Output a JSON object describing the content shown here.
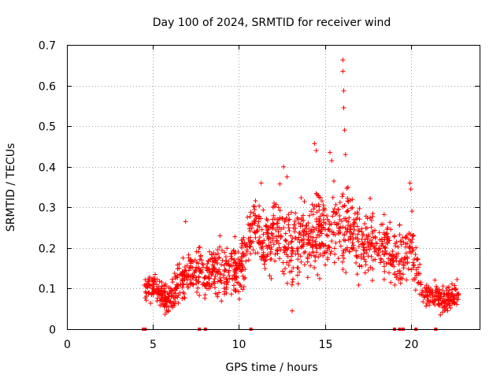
{
  "chart_data": {
    "type": "scatter",
    "title": "Day 100 of 2024, SRMTID for receiver wind",
    "xlabel": "GPS time / hours",
    "ylabel": "SRMTID / TECUs",
    "xlim": [
      0,
      24
    ],
    "ylim": [
      0,
      0.7
    ],
    "x_ticks": [
      0,
      5,
      10,
      15,
      20
    ],
    "x_tick_labels": [
      "0",
      "5",
      "10",
      "15",
      "20"
    ],
    "y_ticks": [
      0,
      0.1,
      0.2,
      0.3,
      0.4,
      0.5,
      0.6,
      0.7
    ],
    "y_tick_labels": [
      "0",
      "0.1",
      "0.2",
      "0.3",
      "0.4",
      "0.5",
      "0.6",
      "0.7"
    ],
    "grid": true,
    "marker": "plus",
    "color": "#ff0000",
    "envelope": {
      "x": [
        4.5,
        5.0,
        5.5,
        6.0,
        6.5,
        7.0,
        7.5,
        8.0,
        8.5,
        9.0,
        9.5,
        10.0,
        10.5,
        11.0,
        11.5,
        12.0,
        12.5,
        13.0,
        13.5,
        14.0,
        14.5,
        15.0,
        15.5,
        16.0,
        16.5,
        17.0,
        17.5,
        18.0,
        18.5,
        19.0,
        19.5,
        20.0,
        20.5,
        21.0,
        21.5,
        22.0,
        22.5,
        22.8
      ],
      "center": [
        0.1,
        0.11,
        0.08,
        0.07,
        0.12,
        0.13,
        0.14,
        0.13,
        0.15,
        0.14,
        0.15,
        0.13,
        0.22,
        0.25,
        0.2,
        0.24,
        0.25,
        0.2,
        0.22,
        0.21,
        0.24,
        0.23,
        0.26,
        0.25,
        0.24,
        0.21,
        0.22,
        0.22,
        0.2,
        0.18,
        0.17,
        0.2,
        0.12,
        0.08,
        0.08,
        0.07,
        0.08,
        0.09
      ],
      "spread": [
        0.03,
        0.03,
        0.03,
        0.03,
        0.04,
        0.05,
        0.05,
        0.05,
        0.05,
        0.05,
        0.06,
        0.06,
        0.07,
        0.07,
        0.07,
        0.08,
        0.09,
        0.08,
        0.08,
        0.08,
        0.09,
        0.09,
        0.09,
        0.09,
        0.08,
        0.07,
        0.07,
        0.07,
        0.07,
        0.06,
        0.07,
        0.07,
        0.05,
        0.03,
        0.03,
        0.03,
        0.03,
        0.03
      ]
    },
    "notable_points": [
      {
        "x": 16.05,
        "y": 0.663
      },
      {
        "x": 16.05,
        "y": 0.635
      },
      {
        "x": 16.1,
        "y": 0.587
      },
      {
        "x": 16.1,
        "y": 0.545
      },
      {
        "x": 16.15,
        "y": 0.49
      },
      {
        "x": 16.2,
        "y": 0.43
      },
      {
        "x": 14.4,
        "y": 0.457
      },
      {
        "x": 14.5,
        "y": 0.44
      },
      {
        "x": 15.3,
        "y": 0.435
      },
      {
        "x": 15.4,
        "y": 0.415
      },
      {
        "x": 12.6,
        "y": 0.4
      },
      {
        "x": 12.8,
        "y": 0.375
      },
      {
        "x": 19.95,
        "y": 0.36
      },
      {
        "x": 20.0,
        "y": 0.345
      },
      {
        "x": 13.1,
        "y": 0.045
      },
      {
        "x": 6.9,
        "y": 0.265
      },
      {
        "x": 8.9,
        "y": 0.23
      },
      {
        "x": 11.3,
        "y": 0.36
      }
    ],
    "zero_points_x": [
      4.45,
      4.55,
      7.7,
      8.05,
      10.7,
      19.05,
      19.35,
      19.55,
      20.3,
      21.45
    ]
  }
}
